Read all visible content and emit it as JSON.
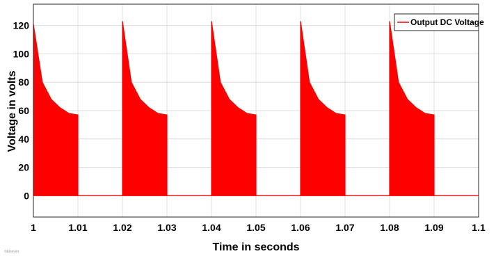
{
  "chart_data": {
    "type": "area",
    "title": "",
    "xlabel": "Time in seconds",
    "ylabel": "Voltage in volts",
    "xlim": [
      1.0,
      1.1
    ],
    "ylim": [
      -15,
      135
    ],
    "x_ticks": [
      "1",
      "1.01",
      "1.02",
      "1.03",
      "1.04",
      "1.05",
      "1.06",
      "1.07",
      "1.08",
      "1.09",
      "1.1"
    ],
    "y_ticks": [
      "0",
      "20",
      "40",
      "60",
      "80",
      "100",
      "120"
    ],
    "grid": true,
    "legend": "top-right",
    "series": [
      {
        "name": "Output DC Voltage",
        "color": "#ff0000",
        "x": [
          1.0,
          1.002,
          1.004,
          1.006,
          1.008,
          1.01,
          1.01,
          1.02,
          1.02,
          1.022,
          1.024,
          1.026,
          1.028,
          1.03,
          1.03,
          1.04,
          1.04,
          1.042,
          1.044,
          1.046,
          1.048,
          1.05,
          1.05,
          1.06,
          1.06,
          1.062,
          1.064,
          1.066,
          1.068,
          1.07,
          1.07,
          1.08,
          1.08,
          1.082,
          1.084,
          1.086,
          1.088,
          1.09,
          1.09,
          1.1
        ],
        "y": [
          121,
          80,
          68,
          62,
          58,
          57,
          0,
          0,
          123,
          80,
          68,
          62,
          58,
          57,
          0,
          0,
          123,
          80,
          68,
          62,
          58,
          57,
          0,
          0,
          123,
          80,
          68,
          62,
          58,
          57,
          0,
          0,
          123,
          80,
          68,
          62,
          58,
          57,
          0,
          0
        ]
      }
    ]
  },
  "corner_text": "©Elsevier"
}
